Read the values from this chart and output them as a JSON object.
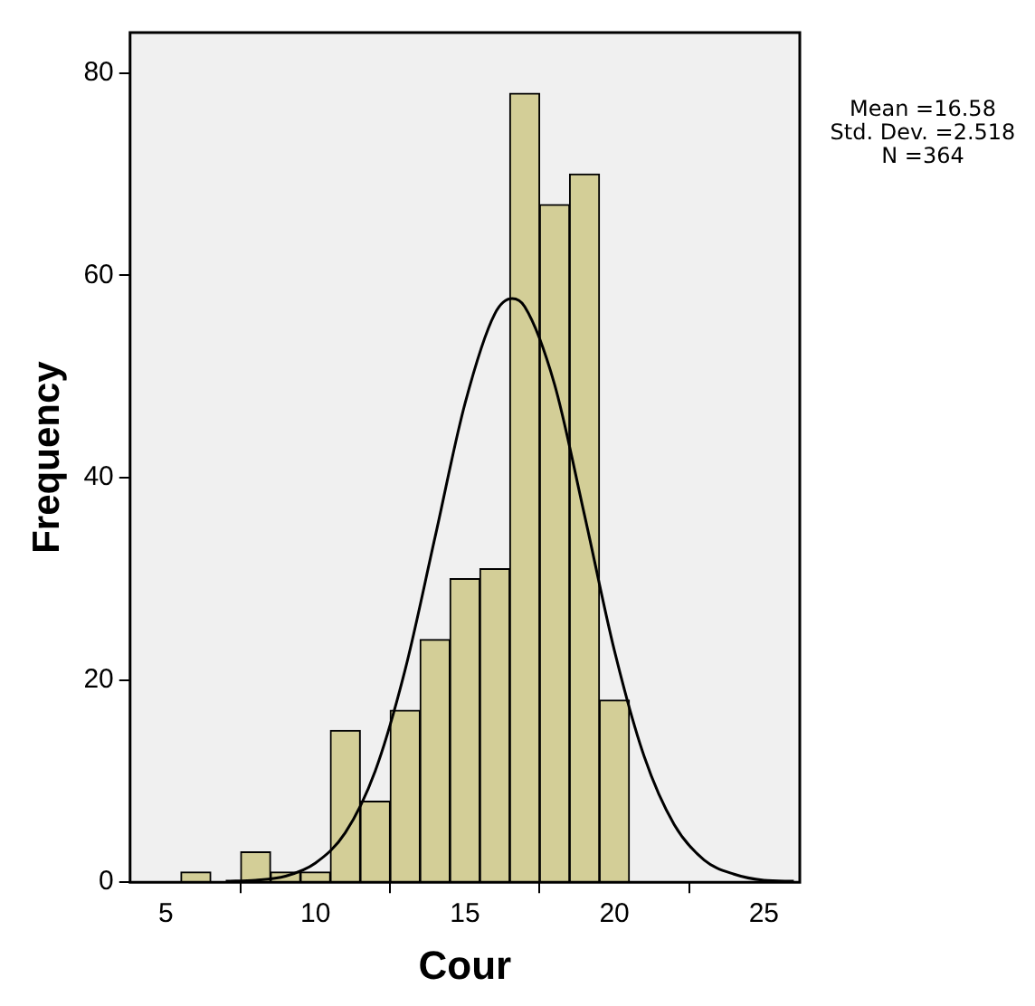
{
  "chart_data": {
    "type": "histogram",
    "xlabel": "Cour",
    "ylabel": "Frequency",
    "xlim": [
      3.8,
      26.2
    ],
    "ylim": [
      0,
      84
    ],
    "xticks": [
      5,
      10,
      15,
      20,
      25
    ],
    "yticks": [
      0,
      20,
      40,
      60,
      80
    ],
    "series": [
      {
        "color": "#d3ce97",
        "bins": [
          5.5,
          6.5,
          7.5,
          8.5,
          9.5,
          10.5,
          11.5,
          12.5,
          13.5,
          14.5,
          15.5,
          16.5,
          17.5,
          18.5,
          19.5,
          20.5
        ],
        "values": [
          1,
          0,
          3,
          1,
          1,
          15,
          8,
          17,
          24,
          30,
          31,
          78,
          67,
          70,
          18
        ]
      },
      {
        "type": "line",
        "color": "#000000",
        "x": [
          7,
          8,
          9,
          10,
          11,
          12,
          13,
          14,
          15,
          16,
          16.58,
          17,
          18,
          19,
          20,
          21,
          22,
          23,
          24,
          25,
          26
        ],
        "values": [
          0.1,
          0.2,
          0.6,
          1.9,
          4.9,
          11,
          21,
          34.1,
          47.3,
          56.2,
          57.7,
          56.9,
          49.2,
          36.3,
          22.9,
          12.4,
          5.7,
          2.2,
          0.8,
          0.2,
          0.1
        ]
      }
    ],
    "annotations": [
      "Mean =16.58",
      "Std. Dev. =2.518",
      "N =364"
    ]
  }
}
